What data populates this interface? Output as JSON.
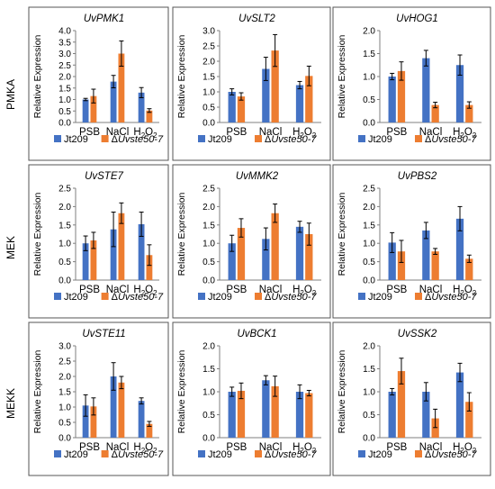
{
  "colors": {
    "jt209": "#4472C4",
    "mutant": "#ED7D31",
    "frame": "#555555",
    "axis": "#7f7f7f"
  },
  "figure": {
    "row_labels": [
      "PMKA",
      "MEK",
      "MEKK"
    ],
    "ylabel": "Relative Expression",
    "categories": [
      "PSB",
      "NaCl",
      "H2O2"
    ],
    "legend": {
      "series1": "Jt209",
      "series2_prefix": "Δ",
      "series2_italic": "Uvste50-7"
    }
  },
  "chart_data": [
    {
      "type": "bar",
      "title": "UvPMK1",
      "ylabel": "Relative Expression",
      "categories": [
        "PSB",
        "NaCl",
        "H2O2"
      ],
      "ylim": [
        0,
        4.0
      ],
      "ytick_step": 0.5,
      "ytick_decimals": 1,
      "series": [
        {
          "name": "Jt209",
          "values": [
            1.0,
            1.78,
            1.3
          ],
          "errors": [
            0.05,
            0.27,
            0.22
          ]
        },
        {
          "name": "ΔUvste50-7",
          "values": [
            1.15,
            3.0,
            0.52
          ],
          "errors": [
            0.3,
            0.55,
            0.08
          ]
        }
      ]
    },
    {
      "type": "bar",
      "title": "UvSLT2",
      "ylabel": "Relative Expression",
      "categories": [
        "PSB",
        "NaCl",
        "H2O2"
      ],
      "ylim": [
        0,
        3
      ],
      "ytick_step": 0.5,
      "ytick_decimals": 1,
      "series": [
        {
          "name": "Jt209",
          "values": [
            1.0,
            1.75,
            1.22
          ],
          "errors": [
            0.1,
            0.38,
            0.12
          ]
        },
        {
          "name": "ΔUvste50-7",
          "values": [
            0.85,
            2.35,
            1.52
          ],
          "errors": [
            0.12,
            0.52,
            0.32
          ]
        }
      ]
    },
    {
      "type": "bar",
      "title": "UvHOG1",
      "ylabel": "Relative Expression",
      "categories": [
        "PSB",
        "NaCl",
        "H2O2"
      ],
      "ylim": [
        0,
        2.0
      ],
      "ytick_step": 0.5,
      "ytick_decimals": 1,
      "series": [
        {
          "name": "Jt209",
          "values": [
            1.0,
            1.4,
            1.25
          ],
          "errors": [
            0.07,
            0.17,
            0.22
          ]
        },
        {
          "name": "ΔUvste50-7",
          "values": [
            1.12,
            0.38,
            0.38
          ],
          "errors": [
            0.2,
            0.06,
            0.07
          ]
        }
      ]
    },
    {
      "type": "bar",
      "title": "UvSTE7",
      "ylabel": "Relative Expression",
      "categories": [
        "PSB",
        "NaCl",
        "H2O2"
      ],
      "ylim": [
        0,
        2.5
      ],
      "ytick_step": 0.5,
      "ytick_decimals": 1,
      "series": [
        {
          "name": "Jt209",
          "values": [
            1.0,
            1.38,
            1.52
          ],
          "errors": [
            0.2,
            0.47,
            0.33
          ]
        },
        {
          "name": "ΔUvste50-7",
          "values": [
            1.08,
            1.82,
            0.68
          ],
          "errors": [
            0.22,
            0.28,
            0.28
          ]
        }
      ]
    },
    {
      "type": "bar",
      "title": "UvMMK2",
      "ylabel": "Relative Expression",
      "categories": [
        "PSB",
        "NaCl",
        "H2O2"
      ],
      "ylim": [
        0,
        2.5
      ],
      "ytick_step": 0.5,
      "ytick_decimals": 1,
      "series": [
        {
          "name": "Jt209",
          "values": [
            1.0,
            1.12,
            1.45
          ],
          "errors": [
            0.22,
            0.3,
            0.15
          ]
        },
        {
          "name": "ΔUvste50-7",
          "values": [
            1.42,
            1.82,
            1.25
          ],
          "errors": [
            0.25,
            0.25,
            0.3
          ]
        }
      ]
    },
    {
      "type": "bar",
      "title": "UvPBS2",
      "ylabel": "Relative Expression",
      "categories": [
        "PSB",
        "NaCl",
        "H2O2"
      ],
      "ylim": [
        0,
        2.5
      ],
      "ytick_step": 0.5,
      "ytick_decimals": 1,
      "series": [
        {
          "name": "Jt209",
          "values": [
            1.02,
            1.35,
            1.67
          ],
          "errors": [
            0.27,
            0.22,
            0.33
          ]
        },
        {
          "name": "ΔUvste50-7",
          "values": [
            0.78,
            0.78,
            0.58
          ],
          "errors": [
            0.3,
            0.08,
            0.1
          ]
        }
      ]
    },
    {
      "type": "bar",
      "title": "UvSTE11",
      "ylabel": "Relative Expression",
      "categories": [
        "PSB",
        "NaCl",
        "H2O2"
      ],
      "ylim": [
        0,
        3.0
      ],
      "ytick_step": 0.5,
      "ytick_decimals": 1,
      "series": [
        {
          "name": "Jt209",
          "values": [
            1.05,
            2.0,
            1.2
          ],
          "errors": [
            0.35,
            0.45,
            0.1
          ]
        },
        {
          "name": "ΔUvste50-7",
          "values": [
            1.02,
            1.8,
            0.45
          ],
          "errors": [
            0.28,
            0.2,
            0.08
          ]
        }
      ]
    },
    {
      "type": "bar",
      "title": "UvBCK1",
      "ylabel": "Relative Expression",
      "categories": [
        "PSB",
        "NaCl",
        "H2O2"
      ],
      "ylim": [
        0,
        2
      ],
      "ytick_step": 0.5,
      "ytick_decimals": 1,
      "series": [
        {
          "name": "Jt209",
          "values": [
            1.0,
            1.25,
            1.0
          ],
          "errors": [
            0.1,
            0.1,
            0.15
          ]
        },
        {
          "name": "ΔUvste50-7",
          "values": [
            1.02,
            1.12,
            0.97
          ],
          "errors": [
            0.17,
            0.22,
            0.06
          ]
        }
      ]
    },
    {
      "type": "bar",
      "title": "UvSSK2",
      "ylabel": "Relative Expression",
      "categories": [
        "PSB",
        "NaCl",
        "H2O2"
      ],
      "ylim": [
        0,
        2.0
      ],
      "ytick_step": 0.5,
      "ytick_decimals": 1,
      "series": [
        {
          "name": "Jt209",
          "values": [
            1.0,
            1.0,
            1.42
          ],
          "errors": [
            0.07,
            0.2,
            0.2
          ]
        },
        {
          "name": "ΔUvste50-7",
          "values": [
            1.45,
            0.42,
            0.78
          ],
          "errors": [
            0.28,
            0.2,
            0.2
          ]
        }
      ]
    }
  ]
}
